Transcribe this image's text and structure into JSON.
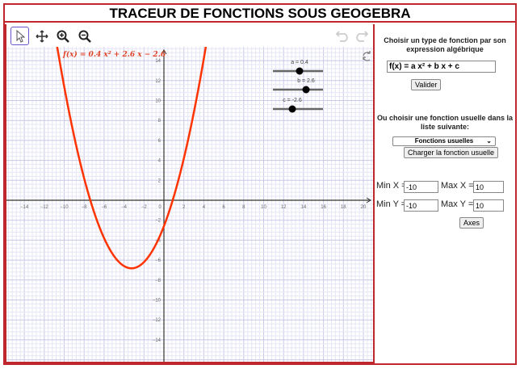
{
  "title": "TRACEUR DE FONCTIONS SOUS GEOGEBRA",
  "toolbar": {
    "tools": [
      "move-tool",
      "move-graphics-view",
      "zoom-in",
      "zoom-out"
    ],
    "undo": "undo",
    "redo": "redo"
  },
  "graph": {
    "function_label": "f(x) = 0.4 x² + 2.6 x − 2.6",
    "function": {
      "a": 0.4,
      "b": 2.6,
      "c": -2.6
    },
    "curve_color": "#ff3300",
    "sliders": [
      {
        "label": "a = 0.4",
        "value": 0.4
      },
      {
        "label": "b = 2.6",
        "value": 2.6
      },
      {
        "label": "c = -2.6",
        "value": -2.6
      }
    ],
    "x_ticks": [
      -14,
      -12,
      -10,
      -8,
      -6,
      -4,
      -2,
      0,
      2,
      4,
      6,
      8,
      10,
      12,
      14,
      16,
      18,
      20
    ],
    "y_ticks": [
      14,
      12,
      10,
      8,
      6,
      4,
      2,
      -2,
      -4,
      -6,
      -8,
      -10,
      -12,
      -14
    ],
    "xlim": [
      -15.8,
      20.9
    ],
    "ylim": [
      -16.2,
      15.3
    ],
    "grid": true
  },
  "panel": {
    "heading1": "Choisir un type de fonction par son expression algébrique",
    "expression": "f(x) = a x² + b x + c",
    "validate": "Valider",
    "heading2": "Ou choisir une fonction usuelle dans la liste suivante:",
    "select_value": "Fonctions usuelles",
    "load": "Charger la fonction usuelle",
    "minx_label": "Min X =",
    "minx": "-10",
    "maxx_label": "Max X =",
    "maxx": "10",
    "miny_label": "Min Y =",
    "miny": "-10",
    "maxy_label": "Max Y =",
    "maxy": "10",
    "axes": "Axes"
  }
}
